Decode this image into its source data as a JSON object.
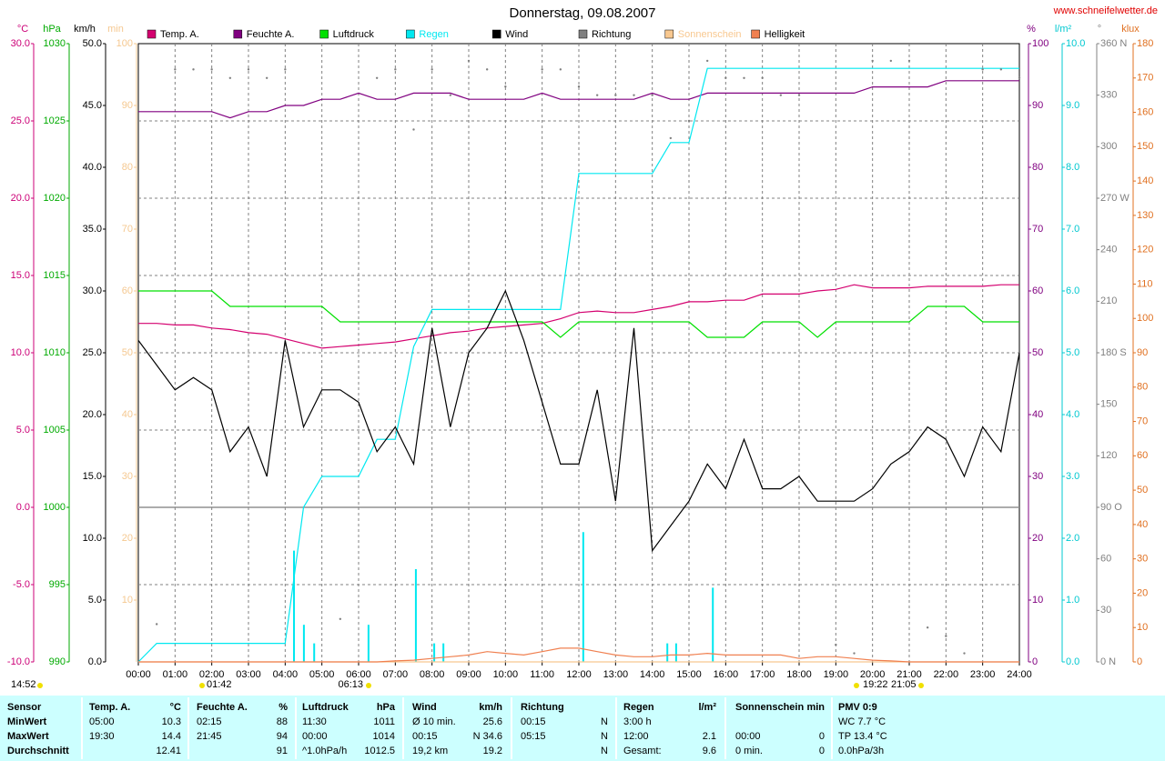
{
  "chart_data": {
    "type": "line",
    "title": "Donnerstag, 09.08.2007",
    "source": "www.schneifelwetter.de",
    "xlim": [
      0,
      24
    ],
    "xticks": [
      {
        "value": 0,
        "label": "00:00"
      },
      {
        "value": 1,
        "label": "01:00"
      },
      {
        "value": 2,
        "label": "02:00"
      },
      {
        "value": 3,
        "label": "03:00"
      },
      {
        "value": 4,
        "label": "04:00"
      },
      {
        "value": 5,
        "label": "05:00"
      },
      {
        "value": 6,
        "label": "06:00"
      },
      {
        "value": 7,
        "label": "07:00"
      },
      {
        "value": 8,
        "label": "08:00"
      },
      {
        "value": 9,
        "label": "09:00"
      },
      {
        "value": 10,
        "label": "10:00"
      },
      {
        "value": 11,
        "label": "11:00"
      },
      {
        "value": 12,
        "label": "12:00"
      },
      {
        "value": 13,
        "label": "13:00"
      },
      {
        "value": 14,
        "label": "14:00"
      },
      {
        "value": 15,
        "label": "15:00"
      },
      {
        "value": 16,
        "label": "16:00"
      },
      {
        "value": 17,
        "label": "17:00"
      },
      {
        "value": 18,
        "label": "18:00"
      },
      {
        "value": 19,
        "label": "19:00"
      },
      {
        "value": 20,
        "label": "20:00"
      },
      {
        "value": 21,
        "label": "21:00"
      },
      {
        "value": 22,
        "label": "22:00"
      },
      {
        "value": 23,
        "label": "23:00"
      },
      {
        "value": 24,
        "label": "24:00"
      }
    ],
    "grid": true,
    "axes": [
      {
        "unit": "°C",
        "side": "left",
        "color": "#cc0077",
        "ylim": [
          -10,
          30
        ],
        "yticks": [
          {
            "value": -10,
            "label": "-10.0"
          },
          {
            "value": -5,
            "label": "-5.0"
          },
          {
            "value": 0,
            "label": "0.0"
          },
          {
            "value": 5,
            "label": "5.0"
          },
          {
            "value": 10,
            "label": "10.0"
          },
          {
            "value": 15,
            "label": "15.0"
          },
          {
            "value": 20,
            "label": "20.0"
          },
          {
            "value": 25,
            "label": "25.0"
          },
          {
            "value": 30,
            "label": "30.0"
          }
        ]
      },
      {
        "unit": "hPa",
        "side": "left",
        "color": "#00aa00",
        "ylim": [
          990,
          1030
        ],
        "yticks": [
          990,
          995,
          1000,
          1005,
          1010,
          1015,
          1020,
          1025,
          1030
        ]
      },
      {
        "unit": "km/h",
        "side": "left",
        "color": "#000000",
        "ylim": [
          0,
          50
        ],
        "yticks": [
          {
            "value": 0,
            "label": "0.0"
          },
          {
            "value": 5,
            "label": "5.0"
          },
          {
            "value": 10,
            "label": "10.0"
          },
          {
            "value": 15,
            "label": "15.0"
          },
          {
            "value": 20,
            "label": "20.0"
          },
          {
            "value": 25,
            "label": "25.0"
          },
          {
            "value": 30,
            "label": "30.0"
          },
          {
            "value": 35,
            "label": "35.0"
          },
          {
            "value": 40,
            "label": "40.0"
          },
          {
            "value": 45,
            "label": "45.0"
          },
          {
            "value": 50,
            "label": "50.0"
          }
        ]
      },
      {
        "unit": "min",
        "side": "left",
        "color": "#f5c890",
        "ylim": [
          0,
          100
        ],
        "yticks": [
          10,
          20,
          30,
          40,
          50,
          60,
          70,
          80,
          90,
          100
        ]
      },
      {
        "unit": "%",
        "side": "right",
        "color": "#800080",
        "ylim": [
          0,
          100
        ],
        "yticks": [
          0,
          10,
          20,
          30,
          40,
          50,
          60,
          70,
          80,
          90,
          100
        ]
      },
      {
        "unit": "l/m²",
        "side": "right",
        "color": "#00c8d0",
        "ylim": [
          0,
          10
        ],
        "yticks": [
          {
            "value": 0,
            "label": "0.0"
          },
          {
            "value": 1,
            "label": "1.0"
          },
          {
            "value": 2,
            "label": "2.0"
          },
          {
            "value": 3,
            "label": "3.0"
          },
          {
            "value": 4,
            "label": "4.0"
          },
          {
            "value": 5,
            "label": "5.0"
          },
          {
            "value": 6,
            "label": "6.0"
          },
          {
            "value": 7,
            "label": "7.0"
          },
          {
            "value": 8,
            "label": "8.0"
          },
          {
            "value": 9,
            "label": "9.0"
          },
          {
            "value": 10,
            "label": "10.0"
          }
        ]
      },
      {
        "unit": "°",
        "side": "right",
        "color": "#808080",
        "ylim": [
          0,
          360
        ],
        "yticks": [
          {
            "value": 0,
            "label": "0 N"
          },
          30,
          60,
          {
            "value": 90,
            "label": "90 O"
          },
          120,
          150,
          {
            "value": 180,
            "label": "180 S"
          },
          210,
          240,
          {
            "value": 270,
            "label": "270 W"
          },
          300,
          330,
          {
            "value": 360,
            "label": "360 N"
          }
        ]
      },
      {
        "unit": "klux",
        "side": "right",
        "color": "#e07020",
        "ylim": [
          0,
          180
        ],
        "yticks": [
          0,
          10,
          20,
          30,
          40,
          50,
          60,
          70,
          80,
          90,
          100,
          110,
          120,
          130,
          140,
          150,
          160,
          170,
          180
        ]
      }
    ],
    "x": [
      0,
      0.5,
      1,
      1.5,
      2,
      2.5,
      3,
      3.5,
      4,
      4.5,
      5,
      5.5,
      6,
      6.5,
      7,
      7.5,
      8,
      8.5,
      9,
      9.5,
      10,
      10.5,
      11,
      11.5,
      12,
      12.5,
      13,
      13.5,
      14,
      14.5,
      15,
      15.5,
      16,
      16.5,
      17,
      17.5,
      18,
      18.5,
      19,
      19.5,
      20,
      20.5,
      21,
      21.5,
      22,
      22.5,
      23,
      23.5,
      24
    ],
    "series": [
      {
        "name": "Temp. A.",
        "color": "#d4006f",
        "axis": 0,
        "values": [
          11.9,
          11.9,
          11.8,
          11.8,
          11.6,
          11.5,
          11.3,
          11.2,
          10.9,
          10.6,
          10.3,
          10.4,
          10.5,
          10.6,
          10.7,
          10.9,
          11.1,
          11.3,
          11.4,
          11.6,
          11.7,
          11.8,
          11.9,
          12.2,
          12.6,
          12.7,
          12.6,
          12.6,
          12.8,
          13.0,
          13.3,
          13.3,
          13.4,
          13.4,
          13.8,
          13.8,
          13.8,
          14.0,
          14.1,
          14.4,
          14.2,
          14.2,
          14.2,
          14.3,
          14.3,
          14.3,
          14.3,
          14.4,
          14.4
        ]
      },
      {
        "name": "Feuchte A.",
        "color": "#800080",
        "axis": 4,
        "values": [
          89,
          89,
          89,
          89,
          89,
          88,
          89,
          89,
          90,
          90,
          91,
          91,
          92,
          91,
          91,
          92,
          92,
          92,
          91,
          91,
          91,
          91,
          92,
          91,
          91,
          91,
          91,
          91,
          92,
          91,
          91,
          92,
          92,
          92,
          92,
          92,
          92,
          92,
          92,
          92,
          93,
          93,
          93,
          93,
          94,
          94,
          94,
          94,
          94
        ]
      },
      {
        "name": "Luftdruck",
        "color": "#00e000",
        "axis": 1,
        "values": [
          1014,
          1014,
          1014,
          1014,
          1014,
          1013,
          1013,
          1013,
          1013,
          1013,
          1013,
          1012,
          1012,
          1012,
          1012,
          1012,
          1012,
          1012,
          1012,
          1012,
          1012,
          1012,
          1012,
          1011,
          1012,
          1012,
          1012,
          1012,
          1012,
          1012,
          1012,
          1011,
          1011,
          1011,
          1012,
          1012,
          1012,
          1011,
          1012,
          1012,
          1012,
          1012,
          1012,
          1013,
          1013,
          1013,
          1012,
          1012,
          1012
        ]
      },
      {
        "name": "Regen",
        "color": "#00e8f0",
        "axis": 5,
        "values": [
          0,
          0.3,
          0.3,
          0.3,
          0.3,
          0.3,
          0.3,
          0.3,
          0.3,
          2.5,
          3.0,
          3.0,
          3.0,
          3.6,
          3.6,
          5.1,
          5.7,
          5.7,
          5.7,
          5.7,
          5.7,
          5.7,
          5.7,
          5.7,
          7.9,
          7.9,
          7.9,
          7.9,
          7.9,
          8.4,
          8.4,
          9.6,
          9.6,
          9.6,
          9.6,
          9.6,
          9.6,
          9.6,
          9.6,
          9.6,
          9.6,
          9.6,
          9.6,
          9.6,
          9.6,
          9.6,
          9.6,
          9.6,
          9.6
        ],
        "spikes_x": [
          4.24,
          4.51,
          4.79,
          6.27,
          7.56,
          8.06,
          8.31,
          12.12,
          14.41,
          14.65,
          15.65
        ],
        "spikes": [
          1.8,
          0.6,
          0.3,
          0.6,
          1.5,
          0.3,
          0.3,
          2.1,
          0.3,
          0.3,
          1.2
        ]
      },
      {
        "name": "Wind",
        "color": "#000000",
        "axis": 2,
        "values": [
          26,
          24,
          22,
          23,
          22,
          17,
          19,
          15,
          26,
          19,
          22,
          22,
          21,
          17,
          19,
          16,
          27,
          19,
          25,
          27,
          30,
          26,
          21,
          16,
          16,
          22,
          13,
          27,
          9,
          11,
          13,
          16,
          14,
          18,
          14,
          14,
          15,
          13,
          13,
          13,
          14,
          16,
          17,
          19,
          18,
          15,
          19,
          17,
          25
        ]
      },
      {
        "name": "Richtung",
        "color": "#808080",
        "axis": 6,
        "style": "dots",
        "values": [
          null,
          22,
          345,
          345,
          345,
          340,
          345,
          340,
          345,
          null,
          null,
          25,
          null,
          340,
          345,
          310,
          345,
          330,
          350,
          345,
          335,
          null,
          345,
          345,
          335,
          330,
          330,
          330,
          330,
          305,
          315,
          350,
          340,
          340,
          340,
          330,
          330,
          null,
          10,
          5,
          350,
          350,
          350,
          20,
          15,
          5,
          345,
          345,
          340
        ]
      },
      {
        "name": "Sonnenschein",
        "color": "#f8c890",
        "axis": 3,
        "values": [
          0,
          0,
          0,
          0,
          0,
          0,
          0,
          0,
          0,
          0,
          0,
          0,
          0,
          0,
          0,
          0,
          0,
          0,
          0,
          0,
          0,
          0,
          0,
          0,
          0,
          0,
          0,
          0,
          0,
          0,
          0,
          0,
          0,
          0,
          0,
          0,
          0,
          0,
          0,
          0,
          0,
          0,
          0,
          0,
          0,
          0,
          0,
          0,
          0
        ]
      },
      {
        "name": "Helligkeit",
        "color": "#f08050",
        "axis": 7,
        "values": [
          0,
          0,
          0,
          0,
          0,
          0,
          0,
          0,
          0,
          0,
          0,
          0,
          0,
          0,
          0.3,
          0.5,
          1,
          1.5,
          2,
          3,
          2.5,
          2,
          3,
          4,
          4,
          3,
          2,
          1.5,
          1.5,
          2,
          2,
          2.5,
          2,
          2,
          2,
          2,
          1,
          1.5,
          1.5,
          1,
          0.5,
          0.3,
          0,
          0,
          0,
          0,
          0,
          0,
          0
        ]
      }
    ],
    "annotations": [
      "14:52",
      "01:42",
      "06:13",
      "19:22",
      "21:05"
    ]
  },
  "table": {
    "header": [
      "Sensor",
      "Temp. A.",
      "°C",
      "Feuchte A.",
      "%",
      "Luftdruck",
      "hPa",
      "Wind",
      "km/h",
      "Richtung",
      null,
      "Regen",
      "l/m²",
      "Sonnenschein",
      "min",
      "PMV 0:9"
    ],
    "rows": [
      [
        "MinWert",
        "05:00",
        10.3,
        "02:15",
        88,
        "11:30",
        1011,
        "Ø 10 min.",
        25.6,
        "00:15",
        "N",
        "3:00 h",
        null,
        null,
        null,
        "WC 7.7 °C"
      ],
      [
        "MaxWert",
        "19:30",
        14.4,
        "21:45",
        94,
        "00:00",
        1014,
        "00:15",
        "N 34.6",
        "05:15",
        "N",
        "12:00",
        2.1,
        "00:00",
        0,
        "TP 13.4 °C"
      ],
      [
        "Durchschnitt",
        null,
        12.41,
        null,
        91,
        "^1.0hPa/h",
        1012.5,
        "19,2 km",
        19.2,
        null,
        "N",
        "Gesamt:",
        9.6,
        "0 min.",
        0,
        "0.0hPa/3h"
      ]
    ]
  }
}
